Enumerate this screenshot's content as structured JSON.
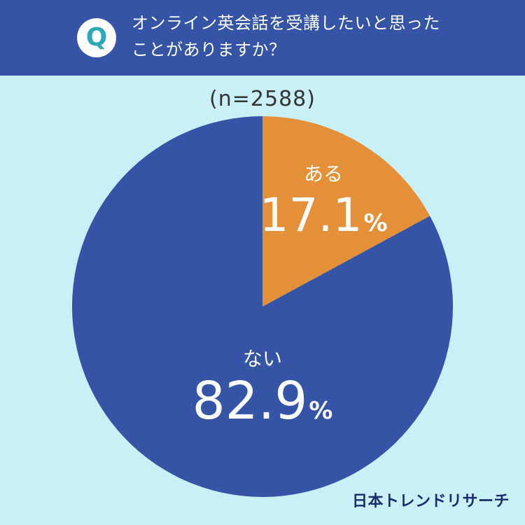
{
  "header": {
    "badge": "Q",
    "question_line1": "オンライン英会話を受講したいと思った",
    "question_line2": "ことがありますか？"
  },
  "sample_label": "(n=2588)",
  "brand": "日本トレンドリサーチ",
  "colors": {
    "header_bg": "#3654a5",
    "background": "#c9f0f7",
    "slice_yes": "#e39039",
    "slice_no": "#3654a5",
    "badge_text": "#2ea8b8"
  },
  "chart_data": {
    "type": "pie",
    "title": "",
    "slices": [
      {
        "label": "ある",
        "value": 17.1,
        "display": "17.1",
        "unit": "%",
        "color": "#e39039"
      },
      {
        "label": "ない",
        "value": 82.9,
        "display": "82.9",
        "unit": "%",
        "color": "#3654a5"
      }
    ],
    "start_angle": "12 o'clock",
    "direction": "clockwise"
  }
}
